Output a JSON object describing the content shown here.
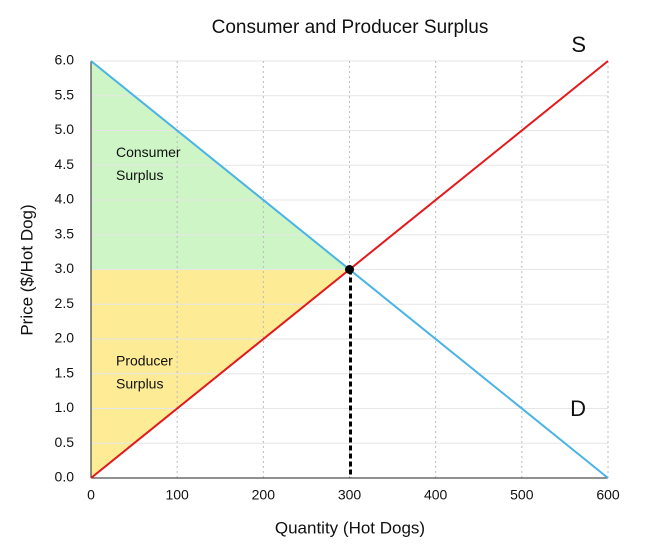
{
  "chart_data": {
    "type": "line",
    "title": "Consumer and Producer Surplus",
    "xlabel": "Quantity (Hot Dogs)",
    "ylabel": "Price ($/Hot Dog)",
    "xlim": [
      0,
      600
    ],
    "ylim": [
      0,
      6
    ],
    "xticks": [
      0,
      100,
      200,
      300,
      400,
      500,
      600
    ],
    "yticks": [
      {
        "value": 0,
        "label": "0.0"
      },
      0.5,
      {
        "value": 1,
        "label": "1.0"
      },
      1.5,
      {
        "value": 2,
        "label": "2.0"
      },
      2.5,
      {
        "value": 3,
        "label": "3.0"
      },
      3.5,
      {
        "value": 4,
        "label": "4.0"
      },
      4.5,
      {
        "value": 5,
        "label": "5.0"
      },
      5.5,
      {
        "value": 6,
        "label": "6.0"
      }
    ],
    "grid": true,
    "series": [
      {
        "name": "S",
        "color": "#e31a1c",
        "x": [
          0,
          600
        ],
        "values": [
          0,
          6
        ]
      },
      {
        "name": "D",
        "color": "#4ab4e6",
        "x": [
          0,
          600
        ],
        "values": [
          6,
          0
        ]
      }
    ],
    "areas": [
      {
        "label": [
          "Consumer",
          "Surplus"
        ],
        "color": "#cdf5c5",
        "x": [
          0,
          0,
          300
        ],
        "y": [
          6,
          3,
          3
        ]
      },
      {
        "label": [
          "Producer",
          "Surplus"
        ],
        "color": "#fdeb96",
        "x": [
          0,
          0,
          300
        ],
        "y": [
          3,
          0,
          3
        ]
      }
    ],
    "equilibrium": {
      "x": 300,
      "y": 3
    }
  }
}
